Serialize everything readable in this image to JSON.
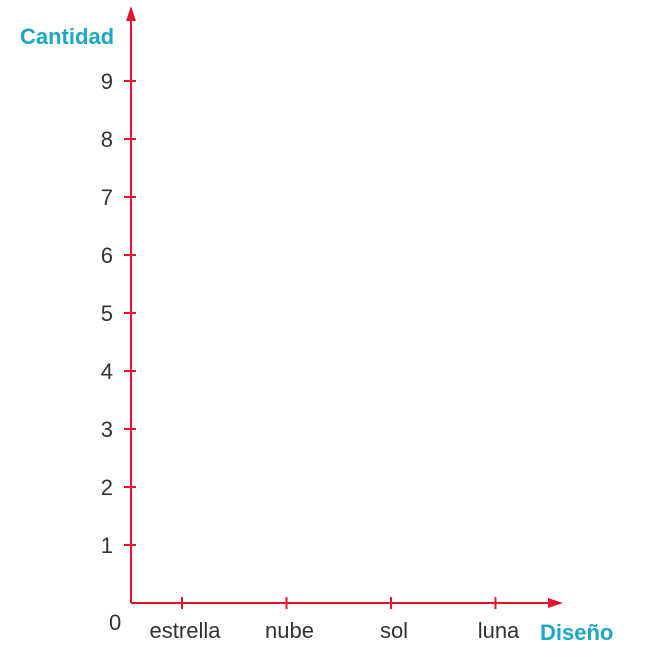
{
  "chart_data": {
    "type": "bar",
    "xlabel": "Diseño",
    "ylabel": "Cantidad",
    "categories": [
      "estrella",
      "nube",
      "sol",
      "luna"
    ],
    "yticks": [
      1,
      2,
      3,
      4,
      5,
      6,
      7,
      8,
      9
    ],
    "origin_label": "0",
    "ylim": [
      0,
      9
    ],
    "series": [],
    "grid": false
  },
  "colors": {
    "axis": "#e3132d",
    "axis_label": "#1ba8c0",
    "tick_text": "#333333"
  }
}
